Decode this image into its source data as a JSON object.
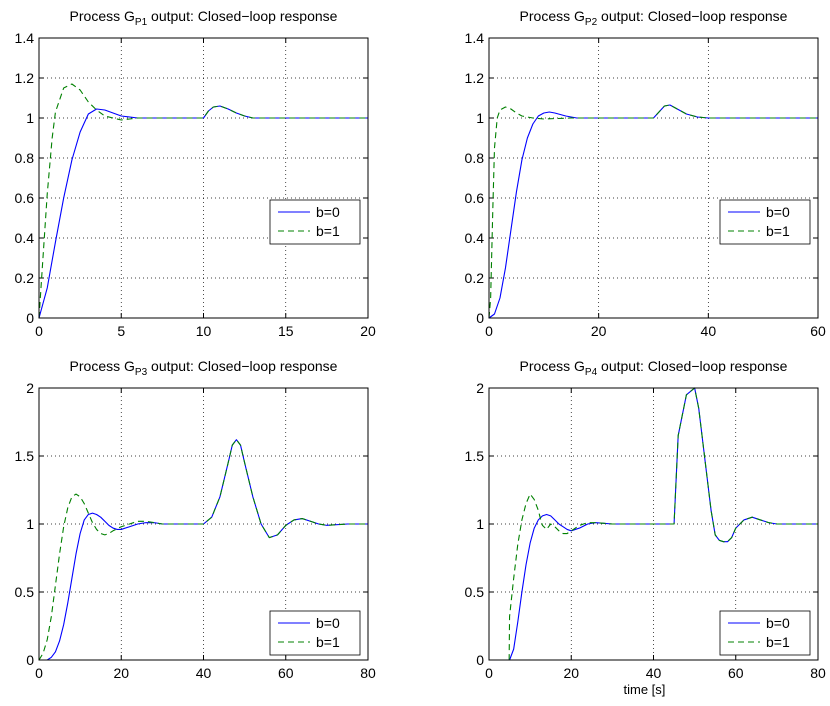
{
  "colors": {
    "b0": "#0000ff",
    "b1": "#008000",
    "grid": "#000000",
    "axes": "#000000"
  },
  "chart_data": [
    {
      "type": "line",
      "title": {
        "prefix": "Process G",
        "sub": "P1",
        "suffix": " output: Closed−loop response"
      },
      "xlabel": "",
      "ylabel": "",
      "xlim": [
        0,
        20
      ],
      "ylim": [
        0,
        1.4
      ],
      "xticks": [
        0,
        5,
        10,
        15,
        20
      ],
      "yticks": [
        0,
        0.2,
        0.4,
        0.6,
        0.8,
        1,
        1.2,
        1.4
      ],
      "xtick_labels": [
        "0",
        "5",
        "10",
        "15",
        "20"
      ],
      "ytick_labels": [
        "0",
        "0.2",
        "0.4",
        "0.6",
        "0.8",
        "1",
        "1.2",
        "1.4"
      ],
      "grid": true,
      "legend": {
        "placement": "right",
        "entries": [
          "b=0",
          "b=1"
        ]
      },
      "series": [
        {
          "name": "b=0",
          "style": "solid",
          "x": [
            0,
            0.5,
            1,
            1.5,
            2,
            2.5,
            3,
            3.5,
            4,
            4.5,
            5,
            6,
            7,
            8,
            9,
            10,
            10.3,
            10.6,
            11,
            11.5,
            12,
            12.5,
            13,
            14,
            15,
            16,
            18,
            20
          ],
          "y": [
            0,
            0.15,
            0.38,
            0.6,
            0.79,
            0.93,
            1.02,
            1.045,
            1.04,
            1.025,
            1.01,
            1.0,
            1.0,
            1.0,
            1.0,
            1.0,
            1.035,
            1.055,
            1.06,
            1.045,
            1.025,
            1.01,
            1.0,
            1.0,
            1.0,
            1.0,
            1.0,
            1.0
          ]
        },
        {
          "name": "b=1",
          "style": "dashed",
          "x": [
            0,
            0.2,
            0.5,
            0.8,
            1,
            1.5,
            2,
            2.5,
            3,
            3.5,
            4,
            4.5,
            5,
            6,
            7,
            8,
            9,
            10,
            10.3,
            10.6,
            11,
            11.5,
            12,
            12.5,
            13,
            14,
            16,
            20
          ],
          "y": [
            0,
            0.25,
            0.62,
            0.9,
            1.03,
            1.15,
            1.17,
            1.14,
            1.08,
            1.04,
            1.01,
            1.0,
            0.99,
            1.0,
            1.0,
            1.0,
            1.0,
            1.0,
            1.035,
            1.055,
            1.06,
            1.045,
            1.025,
            1.01,
            1.0,
            1.0,
            1.0,
            1.0
          ]
        }
      ]
    },
    {
      "type": "line",
      "title": {
        "prefix": "Process G",
        "sub": "P2",
        "suffix": " output: Closed−loop response"
      },
      "xlabel": "",
      "ylabel": "",
      "xlim": [
        0,
        60
      ],
      "ylim": [
        0,
        1.4
      ],
      "xticks": [
        0,
        20,
        40,
        60
      ],
      "yticks": [
        0,
        0.2,
        0.4,
        0.6,
        0.8,
        1,
        1.2,
        1.4
      ],
      "xtick_labels": [
        "0",
        "20",
        "40",
        "60"
      ],
      "ytick_labels": [
        "0",
        "0.2",
        "0.4",
        "0.6",
        "0.8",
        "1",
        "1.2",
        "1.4"
      ],
      "grid": true,
      "legend": {
        "placement": "right",
        "entries": [
          "b=0",
          "b=1"
        ]
      },
      "series": [
        {
          "name": "b=0",
          "style": "solid",
          "x": [
            0,
            1,
            2,
            3,
            4,
            5,
            6,
            7,
            8,
            9,
            10,
            11,
            12,
            14,
            16,
            18,
            20,
            25,
            30,
            31,
            32,
            33,
            34,
            36,
            38,
            40,
            45,
            50,
            60
          ],
          "y": [
            0,
            0.02,
            0.1,
            0.25,
            0.44,
            0.63,
            0.79,
            0.9,
            0.97,
            1.01,
            1.025,
            1.03,
            1.025,
            1.01,
            1.0,
            1.0,
            1.0,
            1.0,
            1.0,
            1.03,
            1.06,
            1.065,
            1.05,
            1.02,
            1.005,
            1.0,
            1.0,
            1.0,
            1.0
          ]
        },
        {
          "name": "b=1",
          "style": "dashed",
          "x": [
            0,
            0.3,
            0.7,
            1,
            1.5,
            2,
            3,
            4,
            5,
            6,
            8,
            10,
            15,
            20,
            25,
            30,
            31,
            32,
            33,
            34,
            36,
            38,
            40,
            45,
            50,
            60
          ],
          "y": [
            0,
            0.1,
            0.55,
            0.85,
            1.0,
            1.04,
            1.055,
            1.045,
            1.025,
            1.01,
            1.0,
            0.995,
            1.0,
            1.0,
            1.0,
            1.0,
            1.03,
            1.06,
            1.065,
            1.05,
            1.02,
            1.005,
            1.0,
            1.0,
            1.0,
            1.0
          ]
        }
      ]
    },
    {
      "type": "line",
      "title": {
        "prefix": "Process G",
        "sub": "P3",
        "suffix": " output: Closed−loop response"
      },
      "xlabel": "",
      "ylabel": "",
      "xlim": [
        0,
        80
      ],
      "ylim": [
        0,
        2
      ],
      "xticks": [
        0,
        20,
        40,
        60,
        80
      ],
      "yticks": [
        0,
        0.5,
        1,
        1.5,
        2
      ],
      "xtick_labels": [
        "0",
        "20",
        "40",
        "60",
        "80"
      ],
      "ytick_labels": [
        "0",
        "0.5",
        "1",
        "1.5",
        "2"
      ],
      "grid": true,
      "legend": {
        "placement": "bottom-right",
        "entries": [
          "b=0",
          "b=1"
        ]
      },
      "series": [
        {
          "name": "b=0",
          "style": "solid",
          "x": [
            0,
            2,
            3,
            4,
            5,
            6,
            7,
            8,
            9,
            10,
            11,
            12,
            13,
            14,
            15,
            16,
            17,
            18,
            19,
            20,
            22,
            24,
            26,
            28,
            30,
            35,
            40,
            42,
            44,
            46,
            47,
            48,
            49,
            50,
            52,
            54,
            56,
            58,
            60,
            62,
            64,
            66,
            68,
            70,
            75,
            80
          ],
          "y": [
            0,
            0.0,
            0.02,
            0.06,
            0.14,
            0.26,
            0.42,
            0.6,
            0.78,
            0.93,
            1.03,
            1.07,
            1.08,
            1.07,
            1.05,
            1.02,
            0.99,
            0.97,
            0.96,
            0.96,
            0.98,
            1.0,
            1.01,
            1.01,
            1.0,
            1.0,
            1.0,
            1.05,
            1.2,
            1.45,
            1.58,
            1.62,
            1.58,
            1.45,
            1.2,
            1.0,
            0.9,
            0.92,
            0.99,
            1.03,
            1.04,
            1.02,
            1.0,
            0.99,
            1.0,
            1.0
          ]
        },
        {
          "name": "b=1",
          "style": "dashed",
          "x": [
            0,
            1,
            2,
            3,
            4,
            5,
            6,
            7,
            8,
            9,
            10,
            11,
            12,
            13,
            14,
            15,
            16,
            17,
            18,
            20,
            22,
            24,
            26,
            28,
            30,
            35,
            40,
            42,
            44,
            46,
            47,
            48,
            49,
            50,
            52,
            54,
            56,
            58,
            60,
            62,
            64,
            66,
            68,
            70,
            75,
            80
          ],
          "y": [
            0,
            0.05,
            0.15,
            0.32,
            0.55,
            0.78,
            0.98,
            1.12,
            1.2,
            1.22,
            1.2,
            1.15,
            1.08,
            1.01,
            0.96,
            0.93,
            0.92,
            0.93,
            0.95,
            0.98,
            1.0,
            1.02,
            1.02,
            1.01,
            1.0,
            1.0,
            1.0,
            1.05,
            1.2,
            1.45,
            1.58,
            1.62,
            1.58,
            1.45,
            1.2,
            1.0,
            0.9,
            0.92,
            0.99,
            1.03,
            1.04,
            1.02,
            1.0,
            0.99,
            1.0,
            1.0
          ]
        }
      ]
    },
    {
      "type": "line",
      "title": {
        "prefix": "Process G",
        "sub": "P4",
        "suffix": " output: Closed−loop response"
      },
      "xlabel": "time [s]",
      "ylabel": "",
      "xlim": [
        0,
        80
      ],
      "ylim": [
        0,
        2
      ],
      "xticks": [
        0,
        20,
        40,
        60,
        80
      ],
      "yticks": [
        0,
        0.5,
        1,
        1.5,
        2
      ],
      "xtick_labels": [
        "0",
        "20",
        "40",
        "60",
        "80"
      ],
      "ytick_labels": [
        "0",
        "0.5",
        "1",
        "1.5",
        "2"
      ],
      "grid": true,
      "legend": {
        "placement": "bottom-right",
        "entries": [
          "b=0",
          "b=1"
        ]
      },
      "series": [
        {
          "name": "b=0",
          "style": "solid",
          "x": [
            0,
            4,
            5,
            6,
            7,
            8,
            9,
            10,
            11,
            12,
            13,
            14,
            15,
            16,
            17,
            18,
            19,
            20,
            22,
            24,
            26,
            30,
            35,
            40,
            44,
            45,
            46,
            48,
            50,
            51,
            52,
            53,
            54,
            55,
            56,
            57,
            58,
            59,
            60,
            62,
            64,
            66,
            68,
            70,
            75,
            80
          ],
          "y": [
            0,
            0,
            0,
            0.08,
            0.28,
            0.5,
            0.7,
            0.86,
            0.97,
            1.03,
            1.06,
            1.07,
            1.06,
            1.03,
            1.0,
            0.98,
            0.96,
            0.95,
            0.97,
            1.0,
            1.01,
            1.0,
            1.0,
            1.0,
            1.0,
            1.0,
            1.65,
            1.95,
            2.0,
            1.85,
            1.6,
            1.35,
            1.1,
            0.92,
            0.88,
            0.87,
            0.87,
            0.9,
            0.97,
            1.03,
            1.05,
            1.03,
            1.01,
            1.0,
            1.0,
            1.0
          ]
        },
        {
          "name": "b=1",
          "style": "dashed",
          "x": [
            0,
            4.9,
            5,
            6,
            7,
            8,
            9,
            10,
            11,
            12,
            12.5,
            13,
            14,
            15,
            16,
            17,
            18,
            19,
            20,
            22,
            24,
            26,
            30,
            35,
            40,
            44,
            45,
            46,
            48,
            50,
            51,
            52,
            53,
            54,
            55,
            56,
            57,
            58,
            59,
            60,
            62,
            64,
            66,
            68,
            70,
            75,
            80
          ],
          "y": [
            0,
            0,
            0.32,
            0.6,
            0.85,
            1.03,
            1.15,
            1.22,
            1.18,
            1.1,
            1.04,
            0.99,
            0.96,
            1.0,
            0.98,
            0.95,
            0.93,
            0.93,
            0.95,
            0.99,
            1.01,
            1.01,
            1.0,
            1.0,
            1.0,
            1.0,
            1.0,
            1.65,
            1.95,
            2.0,
            1.85,
            1.6,
            1.35,
            1.1,
            0.92,
            0.88,
            0.87,
            0.87,
            0.9,
            0.97,
            1.03,
            1.05,
            1.03,
            1.01,
            1.0,
            1.0,
            1.0
          ]
        }
      ]
    }
  ]
}
